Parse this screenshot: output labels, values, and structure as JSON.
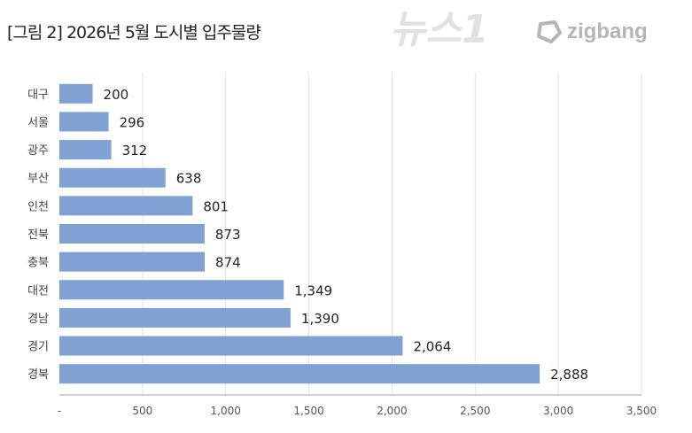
{
  "title": "[그림 2] 2026년 5월 도시별 입주물량",
  "logo": {
    "text": "zigbang",
    "icon": "zigbang-logo-icon"
  },
  "watermark": "뉴스1",
  "chart_data": {
    "type": "bar",
    "orientation": "horizontal",
    "title": "[그림 2] 2026년 5월 도시별 입주물량",
    "categories": [
      "대구",
      "서울",
      "광주",
      "부산",
      "인천",
      "전북",
      "충북",
      "대전",
      "경남",
      "경기",
      "경북"
    ],
    "values": [
      200,
      296,
      312,
      638,
      801,
      873,
      874,
      1349,
      1390,
      2064,
      2888
    ],
    "data_labels": [
      "200",
      "296",
      "312",
      "638",
      "801",
      "873",
      "874",
      "1,349",
      "1,390",
      "2,064",
      "2,888"
    ],
    "xlim": [
      0,
      3500
    ],
    "x_ticks": [
      0,
      500,
      1000,
      1500,
      2000,
      2500,
      3000,
      3500
    ],
    "x_tick_labels": [
      "-",
      "500",
      "1,000",
      "1,500",
      "2,000",
      "2,500",
      "3,000",
      "3,500"
    ],
    "grid": "vertical",
    "legend": "none",
    "bar_color": "#7fa1d4"
  }
}
